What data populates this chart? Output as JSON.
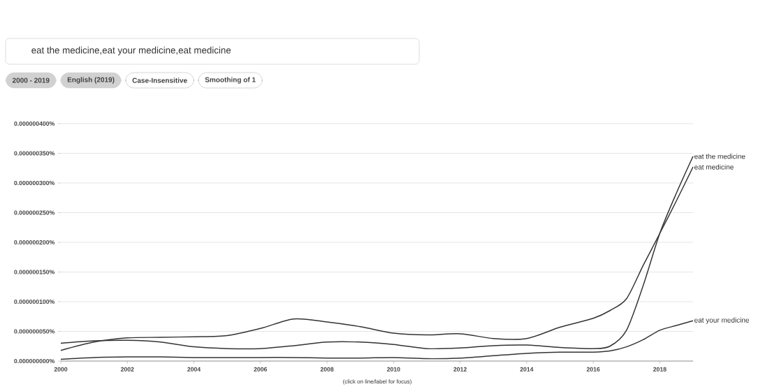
{
  "chart_data": {
    "type": "line",
    "x": [
      2000,
      2001,
      2002,
      2003,
      2004,
      2005,
      2006,
      2007,
      2008,
      2009,
      2010,
      2011,
      2012,
      2013,
      2014,
      2015,
      2016,
      2016.5,
      2017,
      2017.5,
      2018,
      2018.5,
      2019
    ],
    "series": [
      {
        "name": "eat the medicine",
        "color": "#333333",
        "values": [
          3e-08,
          3.4e-08,
          3.5e-08,
          3.2e-08,
          2.4e-08,
          2.1e-08,
          2.1e-08,
          2.6e-08,
          3.2e-08,
          3.2e-08,
          2.8e-08,
          2.1e-08,
          2.2e-08,
          2.6e-08,
          2.7e-08,
          2.3e-08,
          2.1e-08,
          2.5e-08,
          5.2e-08,
          1.27e-07,
          2.15e-07,
          2.83e-07,
          3.45e-07
        ]
      },
      {
        "name": "eat your medicine",
        "color": "#333333",
        "values": [
          3e-09,
          6e-09,
          7e-09,
          7e-09,
          6e-09,
          6e-09,
          6e-09,
          6e-09,
          5e-09,
          5e-09,
          6e-09,
          4e-09,
          5e-09,
          9e-09,
          1.3e-08,
          1.5e-08,
          1.5e-08,
          1.7e-08,
          2.4e-08,
          3.6e-08,
          5.2e-08,
          6e-08,
          6.8e-08
        ]
      },
      {
        "name": "eat medicine",
        "color": "#333333",
        "values": [
          1.8e-08,
          3.2e-08,
          3.9e-08,
          4e-08,
          4.1e-08,
          4.3e-08,
          5.5e-08,
          7.1e-08,
          6.6e-08,
          5.8e-08,
          4.7e-08,
          4.4e-08,
          4.6e-08,
          3.8e-08,
          3.8e-08,
          5.7e-08,
          7.2e-08,
          8.5e-08,
          1.05e-07,
          1.61e-07,
          2.15e-07,
          2.7e-07,
          3.27e-07
        ]
      }
    ],
    "xlim": [
      2000,
      2019
    ],
    "xticks": [
      2000,
      2002,
      2004,
      2006,
      2008,
      2010,
      2012,
      2014,
      2016,
      2018
    ],
    "ylim": [
      0,
      4e-07
    ],
    "yticks": [
      {
        "value": 0,
        "label": "0.000000000%"
      },
      {
        "value": 5e-08,
        "label": "0.000000050%"
      },
      {
        "value": 1e-07,
        "label": "0.000000100%"
      },
      {
        "value": 1.5e-07,
        "label": "0.000000150%"
      },
      {
        "value": 2e-07,
        "label": "0.000000200%"
      },
      {
        "value": 2.5e-07,
        "label": "0.000000250%"
      },
      {
        "value": 3e-07,
        "label": "0.000000300%"
      },
      {
        "value": 3.5e-07,
        "label": "0.000000350%"
      },
      {
        "value": 4e-07,
        "label": "0.000000400%"
      }
    ],
    "grid": "y",
    "annotations": [
      "eat the medicine,eat your medicine,eat medicine",
      "2000 - 2019",
      "English (2019)",
      "Case-Insensitive",
      "Smoothing of 1",
      "(click on line/label for focus)"
    ]
  }
}
